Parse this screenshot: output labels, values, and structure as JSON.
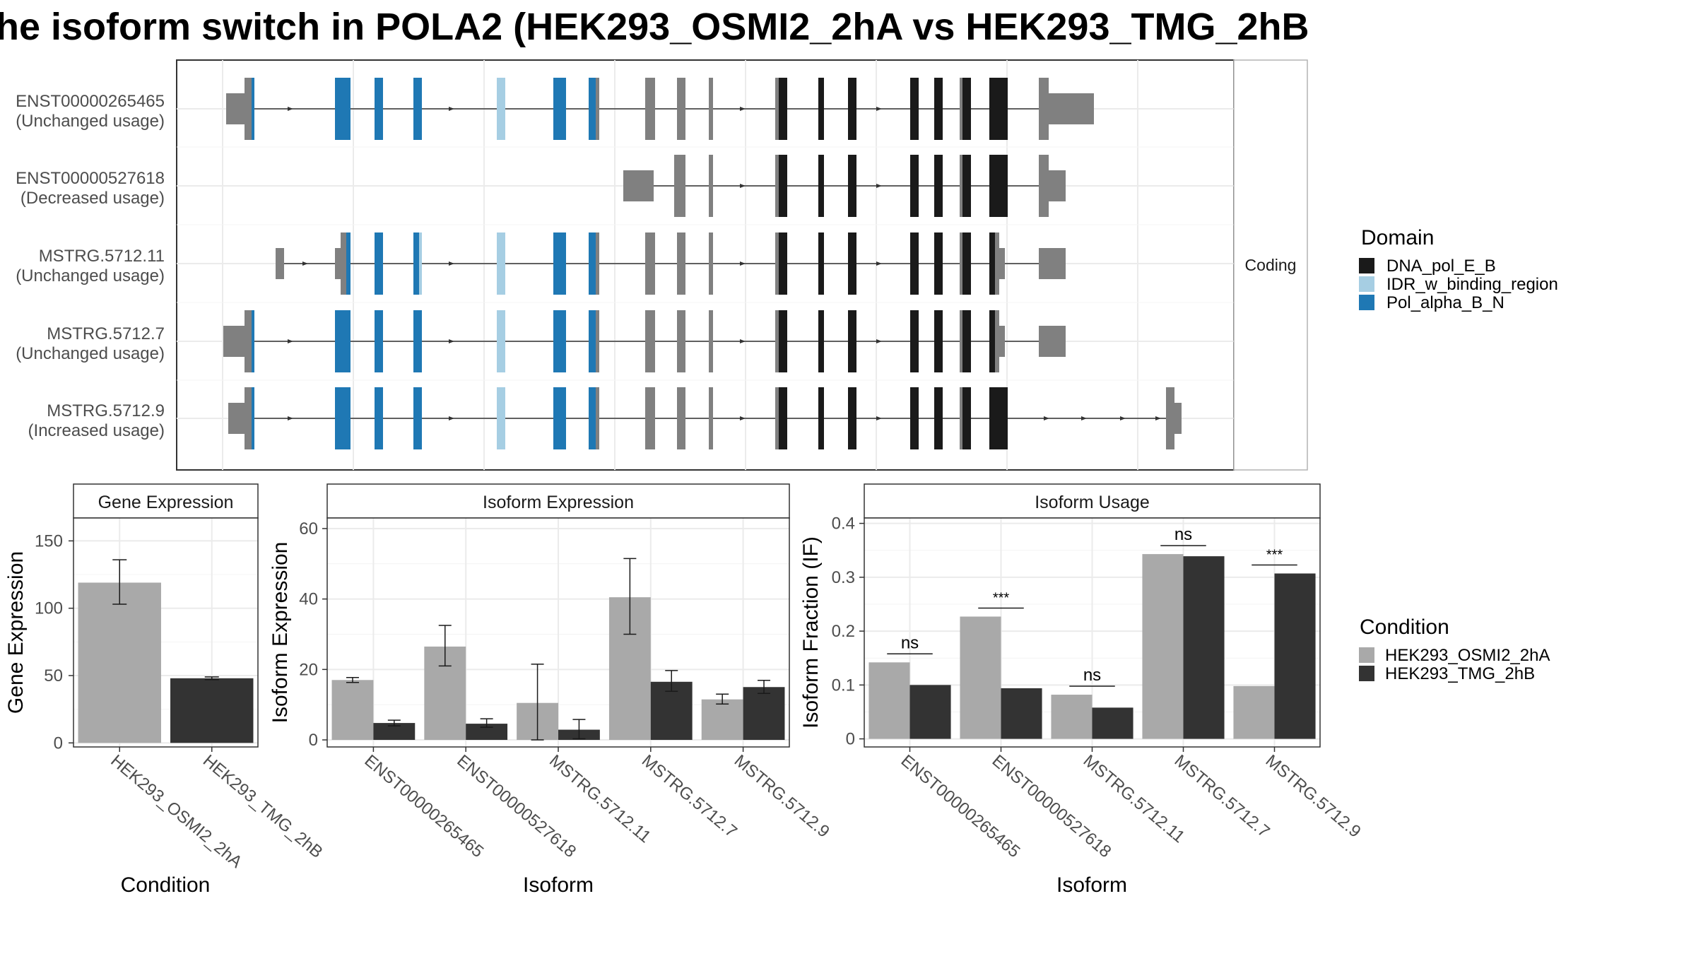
{
  "title": "he isoform switch in POLA2 (HEK293_OSMI2_2hA vs HEK293_TMG_2hB",
  "colors": {
    "DNA_pol_E_B": "#1a1a1a",
    "IDR_w_binding_region": "#a6cee3",
    "Pol_alpha_B_N": "#1f78b4",
    "no_domain": "#808080",
    "HEK293_OSMI2_2hA": "#a9a9a9",
    "HEK293_TMG_2hB": "#333333"
  },
  "structure": {
    "strip_label": "Coding",
    "transcripts": [
      {
        "id": "ENST00000265465",
        "note": "(Unchanged usage)"
      },
      {
        "id": "ENST00000527618",
        "note": "(Decreased usage)"
      },
      {
        "id": "MSTRG.5712.11",
        "note": "(Unchanged usage)"
      },
      {
        "id": "MSTRG.5712.7",
        "note": "(Unchanged usage)"
      },
      {
        "id": "MSTRG.5712.9",
        "note": "(Increased usage)"
      }
    ]
  },
  "legend_domain": {
    "title": "Domain",
    "items": [
      "DNA_pol_E_B",
      "IDR_w_binding_region",
      "Pol_alpha_B_N"
    ]
  },
  "legend_condition": {
    "title": "Condition",
    "items": [
      "HEK293_OSMI2_2hA",
      "HEK293_TMG_2hB"
    ]
  },
  "chart_data": [
    {
      "type": "bar",
      "title": "Gene Expression",
      "xlabel": "Condition",
      "ylabel": "Gene Expression",
      "ylim": [
        -3,
        167
      ],
      "yticks": [
        0,
        50,
        100,
        150
      ],
      "categories": [
        "HEK293_OSMI2_2hA",
        "HEK293_TMG_2hB"
      ],
      "series": [
        {
          "name": "HEK293_OSMI2_2hA",
          "values": [
            119,
            null
          ],
          "err_low": [
            103,
            null
          ],
          "err_high": [
            136,
            null
          ]
        },
        {
          "name": "HEK293_TMG_2hB",
          "values": [
            null,
            48
          ],
          "err_low": [
            null,
            47
          ],
          "err_high": [
            null,
            49
          ]
        }
      ]
    },
    {
      "type": "bar",
      "title": "Isoform Expression",
      "xlabel": "Isoform",
      "ylabel": "Isoform Expression",
      "ylim": [
        -2,
        63
      ],
      "yticks": [
        0,
        20,
        40,
        60
      ],
      "categories": [
        "ENST00000265465",
        "ENST00000527618",
        "MSTRG.5712.11",
        "MSTRG.5712.7",
        "MSTRG.5712.9"
      ],
      "series": [
        {
          "name": "HEK293_OSMI2_2hA",
          "values": [
            17,
            26.5,
            10.5,
            40.5,
            11.5
          ],
          "err_low": [
            16.3,
            21,
            0,
            30,
            10.2
          ],
          "err_high": [
            17.7,
            32.5,
            21.5,
            51.5,
            13
          ]
        },
        {
          "name": "HEK293_TMG_2hB",
          "values": [
            4.8,
            4.6,
            2.9,
            16.5,
            15
          ],
          "err_low": [
            4,
            3.6,
            0.3,
            13.8,
            13.2
          ],
          "err_high": [
            5.6,
            6,
            5.8,
            19.7,
            16.9
          ]
        }
      ]
    },
    {
      "type": "bar",
      "title": "Isoform Usage",
      "xlabel": "Isoform",
      "ylabel": "Isoform Fraction (IF)",
      "ylim": [
        -0.015,
        0.41
      ],
      "yticks": [
        0.0,
        0.1,
        0.2,
        0.3,
        0.4
      ],
      "categories": [
        "ENST00000265465",
        "ENST00000527618",
        "MSTRG.5712.11",
        "MSTRG.5712.7",
        "MSTRG.5712.9"
      ],
      "series": [
        {
          "name": "HEK293_OSMI2_2hA",
          "values": [
            0.142,
            0.227,
            0.082,
            0.343,
            0.098
          ]
        },
        {
          "name": "HEK293_TMG_2hB",
          "values": [
            0.1,
            0.094,
            0.058,
            0.339,
            0.307
          ]
        }
      ],
      "significance": [
        "ns",
        "***",
        "ns",
        "ns",
        "***"
      ]
    }
  ]
}
